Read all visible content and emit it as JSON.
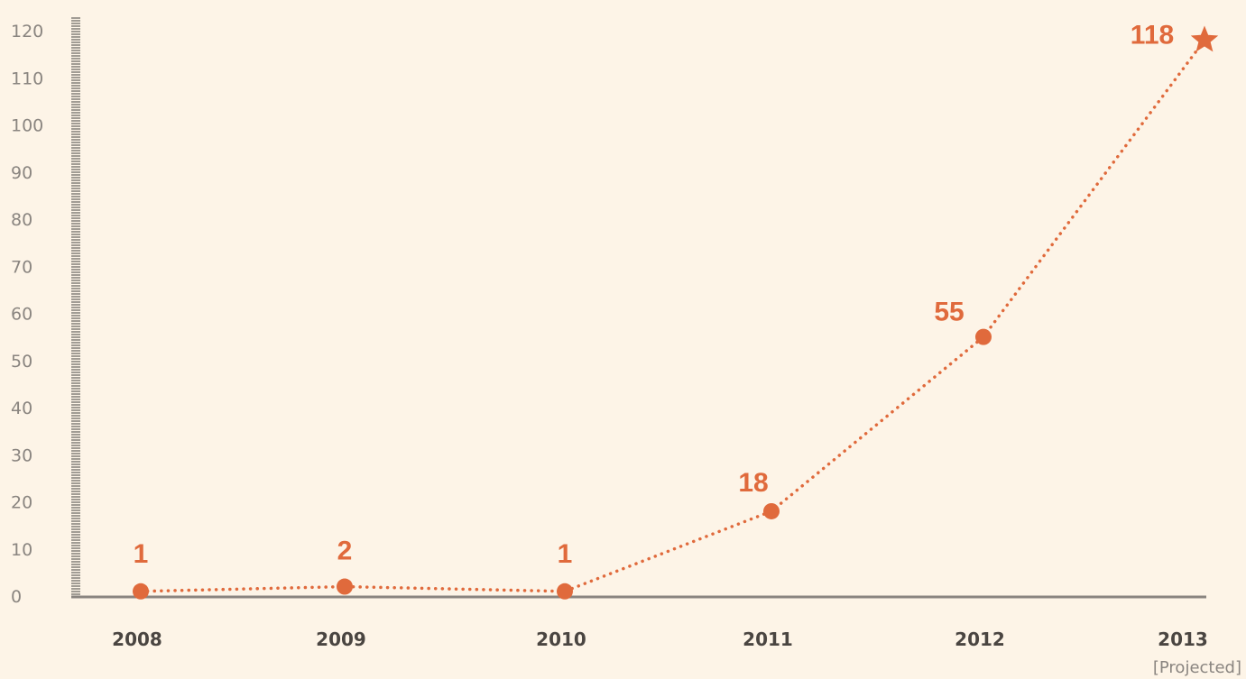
{
  "colors": {
    "background": "#fdf4e7",
    "accent": "#e06a3c",
    "axis": "#8a8580",
    "tick_text": "#8a8580",
    "category_text": "#4a4541"
  },
  "chart_data": {
    "type": "line",
    "categories": [
      "2008",
      "2009",
      "2010",
      "2011",
      "2012",
      "2013"
    ],
    "category_notes": [
      "",
      "",
      "",
      "",
      "",
      "[Projected]"
    ],
    "series": [
      {
        "values": [
          1,
          2,
          1,
          18,
          55,
          118
        ],
        "data_labels": [
          "1",
          "2",
          "1",
          "18",
          "55",
          "118"
        ],
        "markers": [
          "circle",
          "circle",
          "circle",
          "circle",
          "circle",
          "star"
        ],
        "line_style": "dotted"
      }
    ],
    "ylim": [
      0,
      120
    ],
    "yticks": [
      "0",
      "10",
      "20",
      "30",
      "40",
      "50",
      "60",
      "70",
      "80",
      "90",
      "100",
      "110",
      "120"
    ],
    "grid": false,
    "legend": "none",
    "title": "",
    "xlabel": "",
    "ylabel": ""
  }
}
